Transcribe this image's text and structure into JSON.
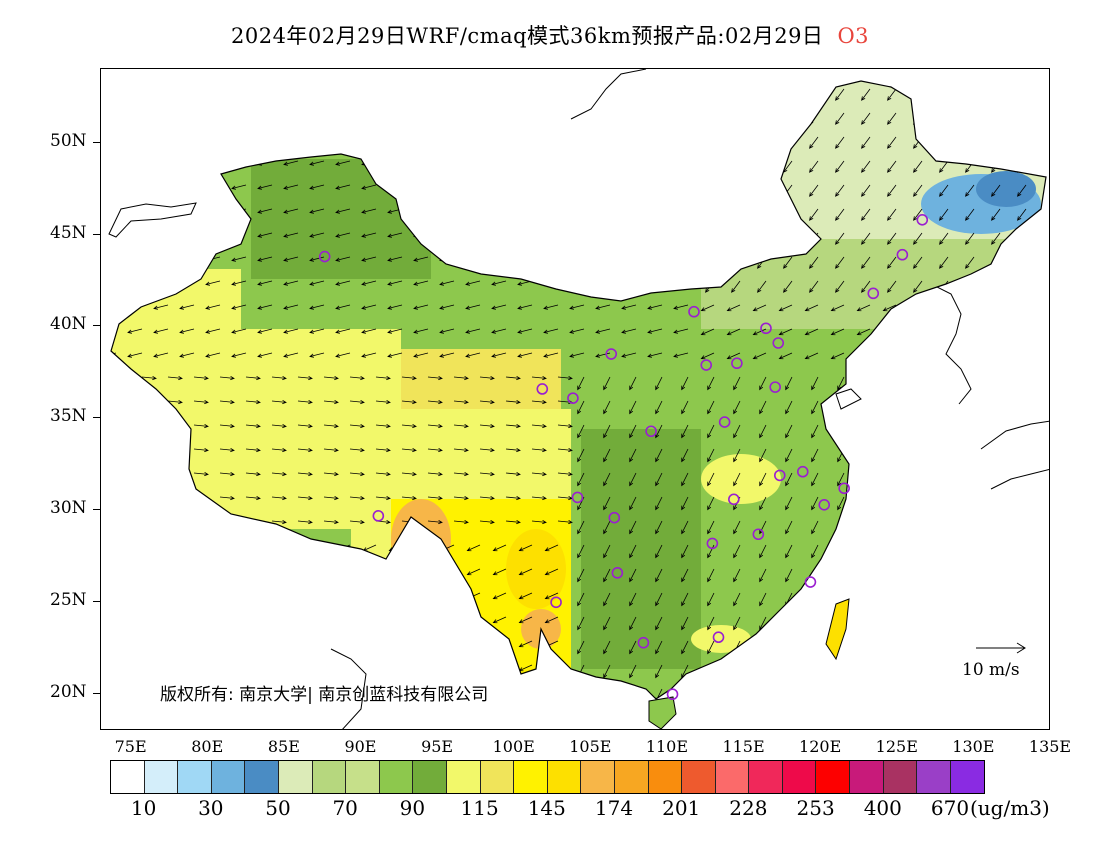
{
  "title": {
    "main": "2024年02月29日WRF/cmaq模式36km预报产品:02月29日",
    "species": "O3",
    "species_color": "#e8453c"
  },
  "axes": {
    "lat_labels": [
      "50N",
      "45N",
      "40N",
      "35N",
      "30N",
      "25N",
      "20N"
    ],
    "lon_labels": [
      "75E",
      "80E",
      "85E",
      "90E",
      "95E",
      "100E",
      "105E",
      "110E",
      "115E",
      "120E",
      "125E",
      "130E",
      "135E"
    ],
    "lon_range": [
      73,
      135
    ],
    "lat_range": [
      18,
      54
    ]
  },
  "colorbar": {
    "colors": [
      "#ffffff",
      "#d4eefa",
      "#a0d8f5",
      "#6eb2de",
      "#4a8cc4",
      "#dcebb8",
      "#b6d77e",
      "#c6e08a",
      "#8dc84d",
      "#72ac3a",
      "#f2f86a",
      "#f0e45a",
      "#fff200",
      "#fde000",
      "#f7b648",
      "#f7a722",
      "#f98d0d",
      "#ee5a2e",
      "#fb6a6a",
      "#f0285a",
      "#ee0a4a",
      "#fd0000",
      "#c81a7a",
      "#a93262",
      "#9a3fc7",
      "#8a2be2"
    ],
    "labels": [
      "10",
      "30",
      "50",
      "70",
      "90",
      "115",
      "145",
      "174",
      "201",
      "228",
      "253",
      "400",
      "670"
    ],
    "unit": "(ug/m3)"
  },
  "copyright": "版权所有: 南京大学| 南京创蓝科技有限公司",
  "wind_reference": "10 m/s",
  "stations": [
    {
      "lon": 87.6,
      "lat": 43.8
    },
    {
      "lon": 91.1,
      "lat": 29.7
    },
    {
      "lon": 101.8,
      "lat": 36.6
    },
    {
      "lon": 103.8,
      "lat": 36.1
    },
    {
      "lon": 106.3,
      "lat": 38.5
    },
    {
      "lon": 104.1,
      "lat": 30.7
    },
    {
      "lon": 106.5,
      "lat": 29.6
    },
    {
      "lon": 106.7,
      "lat": 26.6
    },
    {
      "lon": 102.7,
      "lat": 25.0
    },
    {
      "lon": 108.4,
      "lat": 22.8
    },
    {
      "lon": 110.3,
      "lat": 20.0
    },
    {
      "lon": 113.3,
      "lat": 23.1
    },
    {
      "lon": 112.9,
      "lat": 28.2
    },
    {
      "lon": 114.3,
      "lat": 30.6
    },
    {
      "lon": 115.9,
      "lat": 28.7
    },
    {
      "lon": 119.3,
      "lat": 26.1
    },
    {
      "lon": 120.2,
      "lat": 30.3
    },
    {
      "lon": 121.5,
      "lat": 31.2
    },
    {
      "lon": 118.8,
      "lat": 32.1
    },
    {
      "lon": 117.3,
      "lat": 31.9
    },
    {
      "lon": 113.7,
      "lat": 34.8
    },
    {
      "lon": 108.9,
      "lat": 34.3
    },
    {
      "lon": 112.5,
      "lat": 37.9
    },
    {
      "lon": 114.5,
      "lat": 38.0
    },
    {
      "lon": 117.0,
      "lat": 36.7
    },
    {
      "lon": 116.4,
      "lat": 39.9
    },
    {
      "lon": 117.2,
      "lat": 39.1
    },
    {
      "lon": 111.7,
      "lat": 40.8
    },
    {
      "lon": 123.4,
      "lat": 41.8
    },
    {
      "lon": 125.3,
      "lat": 43.9
    },
    {
      "lon": 126.6,
      "lat": 45.8
    }
  ]
}
